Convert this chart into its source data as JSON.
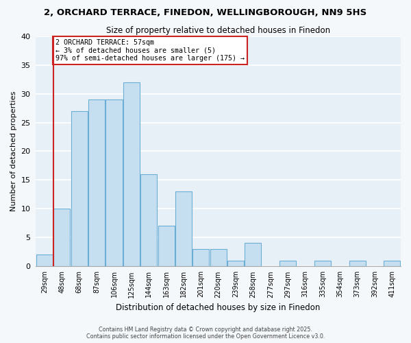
{
  "title": "2, ORCHARD TERRACE, FINEDON, WELLINGBOROUGH, NN9 5HS",
  "subtitle": "Size of property relative to detached houses in Finedon",
  "xlabel": "Distribution of detached houses by size in Finedon",
  "ylabel": "Number of detached properties",
  "bin_labels": [
    "29sqm",
    "48sqm",
    "68sqm",
    "87sqm",
    "106sqm",
    "125sqm",
    "144sqm",
    "163sqm",
    "182sqm",
    "201sqm",
    "220sqm",
    "239sqm",
    "258sqm",
    "277sqm",
    "297sqm",
    "316sqm",
    "335sqm",
    "354sqm",
    "373sqm",
    "392sqm",
    "411sqm"
  ],
  "bar_values": [
    2,
    10,
    27,
    29,
    29,
    32,
    16,
    7,
    13,
    3,
    3,
    1,
    4,
    0,
    1,
    0,
    1,
    0,
    1,
    0,
    1
  ],
  "bar_color": "#c5dff0",
  "bar_edge_color": "#6aaed6",
  "plot_bg_color": "#e8f0f7",
  "fig_bg_color": "#f5f8fb",
  "ylim": [
    0,
    40
  ],
  "yticks": [
    0,
    5,
    10,
    15,
    20,
    25,
    30,
    35,
    40
  ],
  "vline_x": 1.0,
  "vline_color": "#cc2222",
  "annotation_text": "2 ORCHARD TERRACE: 57sqm\n← 3% of detached houses are smaller (5)\n97% of semi-detached houses are larger (175) →",
  "annotation_box_facecolor": "#ffffff",
  "annotation_box_edgecolor": "#cc2222",
  "footer_line1": "Contains HM Land Registry data © Crown copyright and database right 2025.",
  "footer_line2": "Contains public sector information licensed under the Open Government Licence v3.0.",
  "grid_color": "#ffffff",
  "grid_linewidth": 1.2,
  "spine_color": "#aaaaaa"
}
